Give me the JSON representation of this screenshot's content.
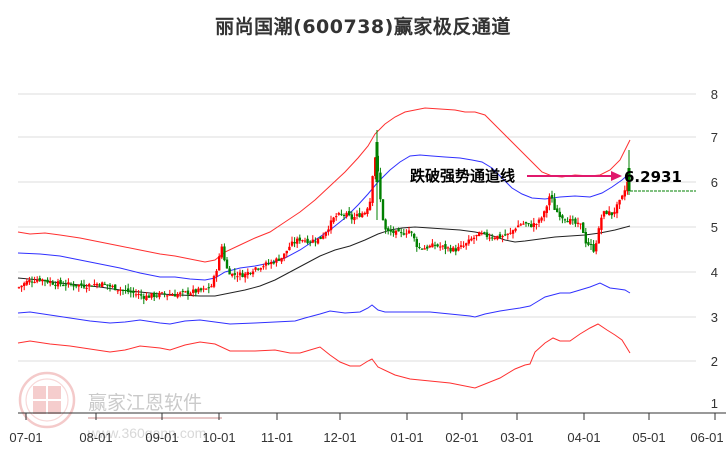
{
  "title": "丽尚国潮(600738)赢家极反通道",
  "annotation": {
    "label": "跌破强势通道线",
    "price": "6.2931",
    "arrow_color": "#e0186c"
  },
  "watermark": {
    "name": "赢家江恩软件",
    "url": "www.360gann.com",
    "seal": [
      "江",
      "赢",
      "恩",
      "家"
    ]
  },
  "colors": {
    "up_candle": "#ff0000",
    "down_candle": "#008000",
    "outer_band": "#ff2020",
    "inner_band": "#2020ff",
    "mid_line": "#222222",
    "grid": "#dddddd",
    "last_price_line": "#008000"
  },
  "chart_data": {
    "type": "candlestick",
    "title": "丽尚国潮(600738)赢家极反通道",
    "xlabel": "",
    "ylabel": "",
    "ylim": [
      1,
      8
    ],
    "y_ticks": [
      1,
      2,
      3,
      4,
      5,
      6,
      7,
      8
    ],
    "x_ticks": [
      "07-01",
      "08-01",
      "09-01",
      "10-01",
      "11-01",
      "12-01",
      "01-01",
      "02-01",
      "03-01",
      "04-01",
      "05-01",
      "06-01"
    ],
    "grid": "horizontal",
    "legend": "none",
    "series": [
      {
        "name": "outer_upper_band",
        "color": "red",
        "x": [
          "07-01",
          "08-01",
          "09-01",
          "10-01",
          "11-01",
          "12-01",
          "12-20",
          "01-01",
          "02-01",
          "03-01",
          "03-15",
          "04-01",
          "04-20"
        ],
        "values": [
          5.0,
          4.85,
          4.6,
          4.55,
          5.3,
          6.4,
          7.4,
          7.6,
          7.5,
          6.5,
          6.0,
          6.1,
          7.3
        ]
      },
      {
        "name": "inner_upper_band",
        "color": "blue",
        "x": [
          "07-01",
          "08-01",
          "09-01",
          "10-01",
          "11-01",
          "12-01",
          "12-20",
          "01-01",
          "02-01",
          "03-01",
          "03-15",
          "04-01",
          "04-20"
        ],
        "values": [
          4.5,
          4.3,
          4.0,
          4.2,
          4.5,
          5.1,
          5.8,
          6.2,
          6.1,
          5.6,
          5.4,
          5.5,
          6.2
        ]
      },
      {
        "name": "middle_line",
        "color": "black",
        "x": [
          "07-01",
          "08-01",
          "09-01",
          "10-01",
          "11-01",
          "12-01",
          "12-20",
          "01-01",
          "02-01",
          "03-01",
          "03-15",
          "04-01",
          "04-20"
        ],
        "values": [
          4.0,
          3.8,
          3.6,
          3.6,
          3.9,
          4.4,
          4.9,
          5.1,
          5.0,
          4.9,
          4.9,
          4.95,
          5.1
        ]
      },
      {
        "name": "inner_lower_band",
        "color": "blue",
        "x": [
          "07-01",
          "08-01",
          "09-01",
          "10-01",
          "11-01",
          "12-01",
          "12-20",
          "01-01",
          "02-01",
          "03-01",
          "03-15",
          "04-01",
          "04-20"
        ],
        "values": [
          3.1,
          2.95,
          2.95,
          3.0,
          2.95,
          3.05,
          3.3,
          3.1,
          3.05,
          3.3,
          3.55,
          3.7,
          3.6
        ]
      },
      {
        "name": "outer_lower_band",
        "color": "red",
        "x": [
          "07-01",
          "08-01",
          "09-01",
          "10-01",
          "11-01",
          "12-01",
          "12-20",
          "01-01",
          "02-01",
          "03-01",
          "03-15",
          "04-01",
          "04-20"
        ],
        "values": [
          2.45,
          2.3,
          2.05,
          2.2,
          2.1,
          1.9,
          1.7,
          1.6,
          1.6,
          2.2,
          2.6,
          2.9,
          2.3
        ]
      },
      {
        "name": "price_close_approx",
        "color": "red/green candles",
        "x": [
          "07-01",
          "08-01",
          "09-01",
          "10-01",
          "10-05",
          "11-01",
          "12-01",
          "12-15",
          "12-22",
          "01-01",
          "02-01",
          "03-01",
          "03-10",
          "04-01",
          "04-15",
          "04-22"
        ],
        "values": [
          3.8,
          3.8,
          3.6,
          3.7,
          4.4,
          4.3,
          5.0,
          5.8,
          5.0,
          4.9,
          4.5,
          4.9,
          5.5,
          4.4,
          5.2,
          6.0
        ]
      }
    ],
    "annotations": [
      {
        "text": "跌破强势通道线",
        "value": 6.2931,
        "type": "arrow"
      }
    ],
    "last_price_level": 5.9
  }
}
